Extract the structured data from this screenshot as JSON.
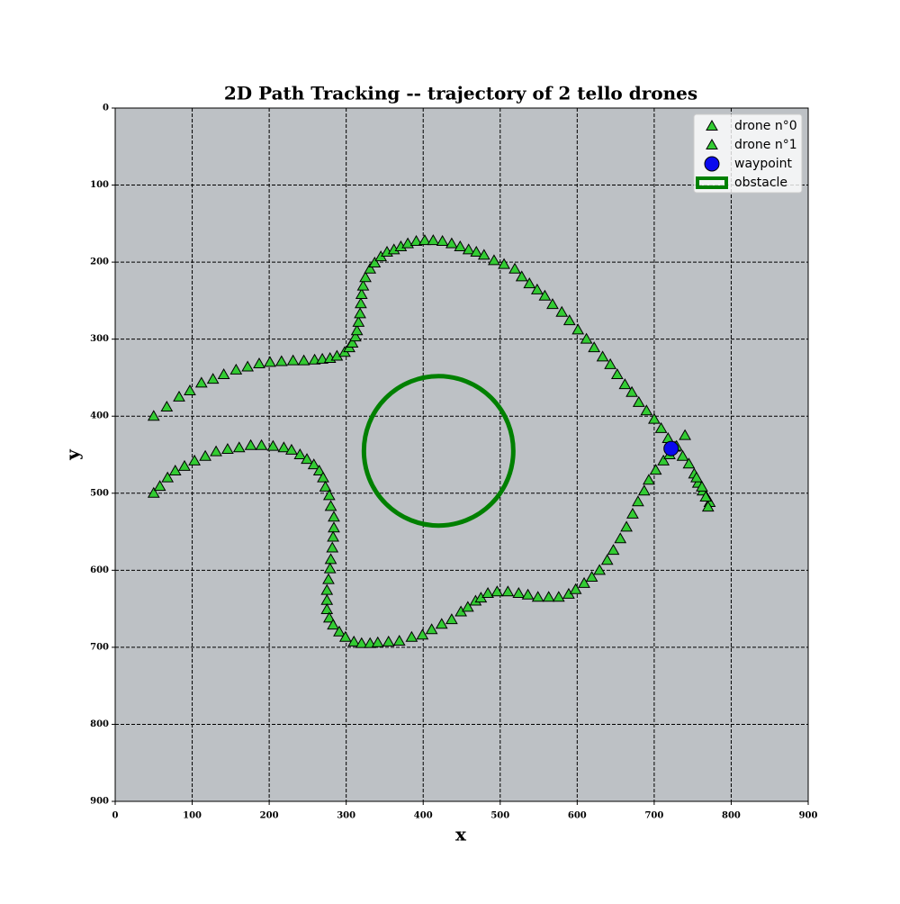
{
  "chart_data": {
    "type": "scatter",
    "title": "2D Path Tracking -- trajectory of 2 tello drones",
    "x_label": "x",
    "y_label": "y",
    "xlim": [
      0,
      900
    ],
    "ylim": [
      900,
      0
    ],
    "xticks": [
      0,
      100,
      200,
      300,
      400,
      500,
      600,
      700,
      800,
      900
    ],
    "yticks": [
      0,
      100,
      200,
      300,
      400,
      500,
      600,
      700,
      800,
      900
    ],
    "grid": true,
    "legend": "upper right",
    "background": "#bdc1c5",
    "series": [
      {
        "name": "drone n°0",
        "marker": "triangle",
        "color": "#33cc33",
        "x": [
          50,
          67,
          83,
          97,
          112,
          127,
          141,
          157,
          172,
          187,
          201,
          216,
          231,
          245,
          259,
          269,
          279,
          288,
          298,
          304,
          308,
          312,
          314,
          316,
          318,
          319,
          320,
          322,
          325,
          331,
          337,
          345,
          353,
          362,
          371,
          380,
          391,
          402,
          413,
          425,
          437,
          448,
          459,
          469,
          479,
          492,
          505,
          519,
          528,
          538,
          548,
          558,
          568,
          580,
          590,
          601,
          612,
          622,
          633,
          643,
          652,
          662,
          671,
          680,
          690,
          700,
          709,
          718,
          727,
          737,
          745,
          752,
          757,
          763,
          768,
          772
        ],
        "values": [
          400,
          388,
          375,
          367,
          357,
          352,
          346,
          340,
          336,
          332,
          330,
          329,
          328,
          328,
          327,
          326,
          325,
          322,
          317,
          311,
          305,
          297,
          289,
          278,
          267,
          254,
          242,
          231,
          220,
          209,
          201,
          193,
          187,
          184,
          180,
          176,
          173,
          172,
          172,
          173,
          176,
          180,
          184,
          187,
          191,
          198,
          203,
          209,
          219,
          228,
          236,
          244,
          255,
          265,
          276,
          288,
          300,
          311,
          323,
          333,
          346,
          359,
          369,
          382,
          393,
          404,
          416,
          429,
          440,
          452,
          462,
          475,
          487,
          497,
          505,
          512
        ]
      },
      {
        "name": "drone n°1",
        "marker": "triangle",
        "color": "#33cc33",
        "x": [
          50,
          58,
          68,
          78,
          90,
          103,
          117,
          131,
          146,
          161,
          176,
          190,
          205,
          219,
          229,
          240,
          249,
          258,
          265,
          270,
          273,
          278,
          280,
          284,
          284,
          283,
          282,
          280,
          279,
          277,
          275,
          275,
          275,
          278,
          283,
          291,
          299,
          310,
          320,
          331,
          341,
          355,
          369,
          385,
          399,
          411,
          424,
          437,
          449,
          458,
          468,
          475,
          484,
          496,
          510,
          524,
          536,
          549,
          563,
          576,
          589,
          598,
          609,
          619,
          629,
          639,
          647,
          656,
          664,
          672,
          679,
          687,
          693,
          702,
          712,
          720,
          729,
          740,
          755,
          762,
          767,
          770
        ],
        "values": [
          500,
          491,
          480,
          471,
          465,
          458,
          452,
          446,
          443,
          441,
          438,
          438,
          439,
          441,
          444,
          450,
          456,
          463,
          471,
          480,
          492,
          503,
          517,
          531,
          545,
          557,
          571,
          586,
          598,
          612,
          626,
          639,
          651,
          662,
          671,
          680,
          687,
          693,
          695,
          695,
          694,
          693,
          692,
          687,
          684,
          677,
          670,
          664,
          654,
          648,
          640,
          636,
          630,
          628,
          628,
          630,
          632,
          635,
          635,
          635,
          631,
          625,
          617,
          609,
          600,
          587,
          574,
          559,
          544,
          527,
          511,
          497,
          483,
          470,
          458,
          450,
          439,
          425,
          480,
          492,
          505,
          518
        ]
      },
      {
        "name": "waypoint",
        "marker": "circle",
        "color": "#0a0aee",
        "x": [
          722
        ],
        "values": [
          442
        ]
      }
    ],
    "obstacle": {
      "name": "obstacle",
      "color": "#008000",
      "center": [
        420,
        445
      ],
      "radius": 97
    }
  }
}
